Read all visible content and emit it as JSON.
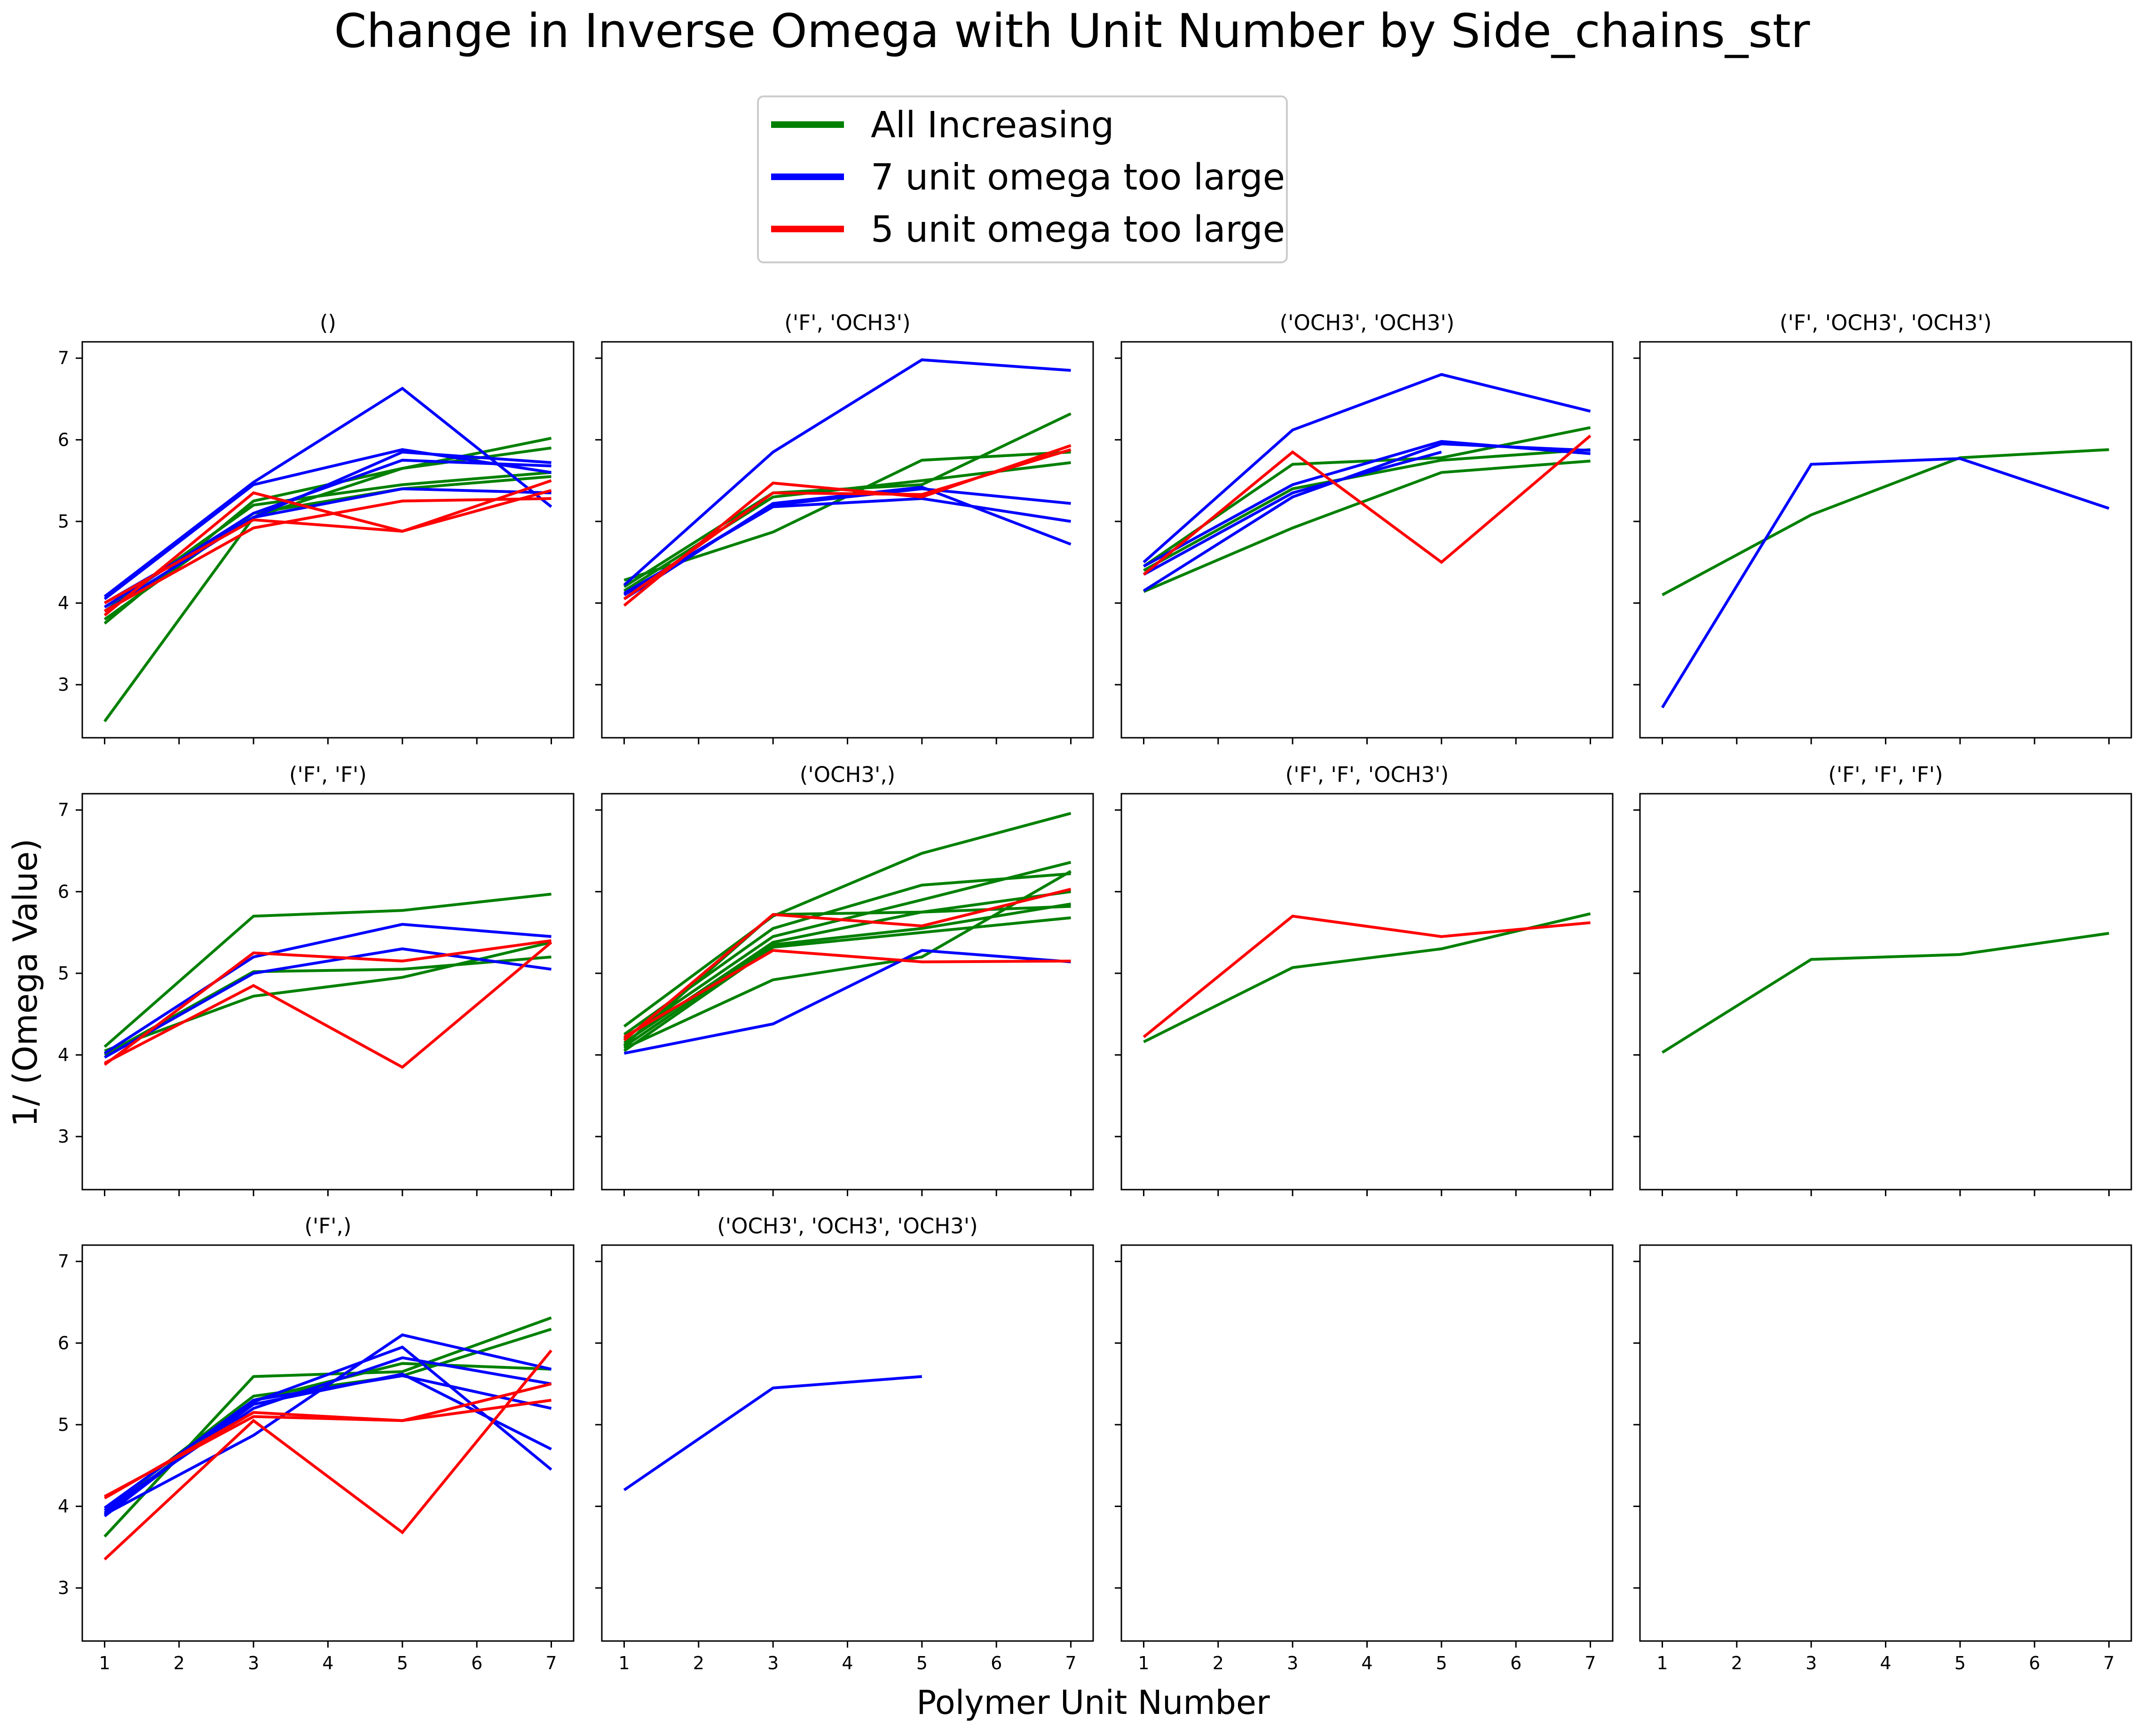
{
  "figure": {
    "title": "Change in Inverse Omega with Unit Number by Side_chains_str",
    "xlabel": "Polymer Unit Number",
    "ylabel": "1/ (Omega Value)"
  },
  "legend": {
    "location": "upper center",
    "entries": [
      {
        "label": "All Increasing",
        "color": "#008000"
      },
      {
        "label": "7 unit omega too large",
        "color": "#0000ff"
      },
      {
        "label": "5 unit omega too large",
        "color": "#ff0000"
      }
    ]
  },
  "chart_data": {
    "type": "line",
    "layout": "3x4 small multiples",
    "sharex": true,
    "sharey": true,
    "grid": false,
    "x_ticks": [
      1,
      2,
      3,
      4,
      5,
      6,
      7
    ],
    "y_ticks": [
      3,
      4,
      5,
      6,
      7
    ],
    "xlim": [
      0.7,
      7.3
    ],
    "ylim": [
      2.35,
      7.2
    ],
    "panels": [
      {
        "title": "()",
        "lines": [
          {
            "category": "All Increasing",
            "x": [
              1,
              3,
              5,
              7
            ],
            "y": [
              2.55,
              5.05,
              5.65,
              6.02
            ]
          },
          {
            "category": "All Increasing",
            "x": [
              1,
              3,
              5,
              7
            ],
            "y": [
              3.75,
              5.25,
              5.65,
              5.9
            ]
          },
          {
            "category": "All Increasing",
            "x": [
              1,
              3,
              5,
              7
            ],
            "y": [
              3.8,
              5.1,
              5.4,
              5.55
            ]
          },
          {
            "category": "All Increasing",
            "x": [
              1,
              3,
              5,
              7
            ],
            "y": [
              3.9,
              5.2,
              5.45,
              5.6
            ]
          },
          {
            "category": "7 unit omega too large",
            "x": [
              1,
              3,
              5,
              7
            ],
            "y": [
              4.08,
              5.48,
              6.63,
              5.18
            ]
          },
          {
            "category": "7 unit omega too large",
            "x": [
              1,
              3,
              5,
              7
            ],
            "y": [
              4.05,
              5.45,
              5.88,
              5.6
            ]
          },
          {
            "category": "7 unit omega too large",
            "x": [
              1,
              3,
              5,
              7
            ],
            "y": [
              4.0,
              5.05,
              5.85,
              5.72
            ]
          },
          {
            "category": "7 unit omega too large",
            "x": [
              1,
              3,
              5,
              7
            ],
            "y": [
              3.95,
              5.1,
              5.75,
              5.68
            ]
          },
          {
            "category": "7 unit omega too large",
            "x": [
              1,
              3,
              5,
              7
            ],
            "y": [
              3.9,
              5.05,
              5.4,
              5.35
            ]
          },
          {
            "category": "5 unit omega too large",
            "x": [
              1,
              3,
              5,
              7
            ],
            "y": [
              3.85,
              5.35,
              4.88,
              5.5
            ]
          },
          {
            "category": "5 unit omega too large",
            "x": [
              1,
              3,
              5,
              7
            ],
            "y": [
              3.9,
              4.92,
              5.25,
              5.28
            ]
          },
          {
            "category": "5 unit omega too large",
            "x": [
              1,
              3,
              5,
              7
            ],
            "y": [
              4.0,
              5.02,
              4.88,
              5.38
            ]
          }
        ]
      },
      {
        "title": "('F', 'OCH3')",
        "lines": [
          {
            "category": "All Increasing",
            "x": [
              1,
              3,
              5,
              7
            ],
            "y": [
              4.28,
              4.87,
              5.75,
              5.85
            ]
          },
          {
            "category": "All Increasing",
            "x": [
              1,
              3,
              5,
              7
            ],
            "y": [
              4.2,
              5.35,
              5.45,
              6.32
            ]
          },
          {
            "category": "All Increasing",
            "x": [
              1,
              3,
              5,
              7
            ],
            "y": [
              4.15,
              5.3,
              5.5,
              5.72
            ]
          },
          {
            "category": "7 unit omega too large",
            "x": [
              1,
              3,
              5,
              7
            ],
            "y": [
              4.22,
              5.85,
              6.98,
              6.85
            ]
          },
          {
            "category": "7 unit omega too large",
            "x": [
              1,
              3,
              5,
              7
            ],
            "y": [
              4.1,
              5.2,
              5.4,
              5.22
            ]
          },
          {
            "category": "7 unit omega too large",
            "x": [
              1,
              3,
              5,
              7
            ],
            "y": [
              4.12,
              5.18,
              5.28,
              5.0
            ]
          },
          {
            "category": "7 unit omega too large",
            "x": [
              1,
              3,
              5,
              7
            ],
            "y": [
              4.05,
              5.22,
              5.42,
              4.72
            ]
          },
          {
            "category": "5 unit omega too large",
            "x": [
              1,
              3,
              5,
              7
            ],
            "y": [
              3.97,
              5.47,
              5.3,
              5.93
            ]
          },
          {
            "category": "5 unit omega too large",
            "x": [
              1,
              3,
              5,
              7
            ],
            "y": [
              4.05,
              5.35,
              5.33,
              5.88
            ]
          }
        ]
      },
      {
        "title": "('OCH3', 'OCH3')",
        "lines": [
          {
            "category": "All Increasing",
            "x": [
              1,
              3,
              5,
              7
            ],
            "y": [
              4.14,
              4.92,
              5.6,
              5.74
            ]
          },
          {
            "category": "All Increasing",
            "x": [
              1,
              3,
              5,
              7
            ],
            "y": [
              4.45,
              5.7,
              5.78,
              6.15
            ]
          },
          {
            "category": "All Increasing",
            "x": [
              1,
              3,
              5,
              7
            ],
            "y": [
              4.4,
              5.4,
              5.75,
              5.88
            ]
          },
          {
            "category": "7 unit omega too large",
            "x": [
              1,
              3,
              5,
              7
            ],
            "y": [
              4.5,
              6.12,
              6.8,
              6.35
            ]
          },
          {
            "category": "7 unit omega too large",
            "x": [
              1,
              3,
              5,
              7
            ],
            "y": [
              4.45,
              5.45,
              5.98,
              5.83
            ]
          },
          {
            "category": "7 unit omega too large",
            "x": [
              1,
              3,
              5,
              7
            ],
            "y": [
              4.15,
              5.3,
              5.95,
              5.87
            ]
          },
          {
            "category": "7 unit omega too large",
            "x": [
              1,
              3,
              5
            ],
            "y": [
              4.35,
              5.35,
              5.85
            ]
          },
          {
            "category": "5 unit omega too large",
            "x": [
              1,
              3,
              5,
              7
            ],
            "y": [
              4.35,
              5.85,
              4.5,
              6.05
            ]
          }
        ]
      },
      {
        "title": "('F', 'OCH3', 'OCH3')",
        "lines": [
          {
            "category": "All Increasing",
            "x": [
              1,
              3,
              5,
              7
            ],
            "y": [
              4.1,
              5.08,
              5.78,
              5.88
            ]
          },
          {
            "category": "7 unit omega too large",
            "x": [
              1,
              3,
              5,
              7
            ],
            "y": [
              2.72,
              5.7,
              5.77,
              5.16
            ]
          }
        ]
      },
      {
        "title": "('F', 'F')",
        "lines": [
          {
            "category": "All Increasing",
            "x": [
              1,
              3,
              5,
              7
            ],
            "y": [
              4.1,
              5.7,
              5.77,
              5.97
            ]
          },
          {
            "category": "All Increasing",
            "x": [
              1,
              3,
              5,
              7
            ],
            "y": [
              4.05,
              4.72,
              4.95,
              5.38
            ]
          },
          {
            "category": "All Increasing",
            "x": [
              1,
              3,
              5,
              7
            ],
            "y": [
              4.0,
              5.02,
              5.05,
              5.2
            ]
          },
          {
            "category": "7 unit omega too large",
            "x": [
              1,
              3,
              5,
              7
            ],
            "y": [
              4.02,
              5.2,
              5.6,
              5.45
            ]
          },
          {
            "category": "7 unit omega too large",
            "x": [
              1,
              3,
              5,
              7
            ],
            "y": [
              3.97,
              5.0,
              5.3,
              5.05
            ]
          },
          {
            "category": "5 unit omega too large",
            "x": [
              1,
              3,
              5,
              7
            ],
            "y": [
              3.88,
              5.25,
              5.15,
              5.4
            ]
          },
          {
            "category": "5 unit omega too large",
            "x": [
              1,
              3,
              5,
              7
            ],
            "y": [
              3.9,
              4.85,
              3.85,
              5.38
            ]
          }
        ]
      },
      {
        "title": "('OCH3',)",
        "lines": [
          {
            "category": "All Increasing",
            "x": [
              1,
              3,
              5,
              7
            ],
            "y": [
              4.35,
              5.7,
              6.47,
              6.96
            ]
          },
          {
            "category": "All Increasing",
            "x": [
              1,
              3,
              5,
              7
            ],
            "y": [
              4.25,
              5.55,
              6.08,
              6.22
            ]
          },
          {
            "category": "All Increasing",
            "x": [
              1,
              3,
              5,
              7
            ],
            "y": [
              4.2,
              5.45,
              5.9,
              6.36
            ]
          },
          {
            "category": "All Increasing",
            "x": [
              1,
              3,
              5,
              7
            ],
            "y": [
              4.15,
              5.38,
              5.75,
              6.0
            ]
          },
          {
            "category": "All Increasing",
            "x": [
              1,
              3,
              5,
              7
            ],
            "y": [
              4.1,
              5.35,
              5.55,
              5.85
            ]
          },
          {
            "category": "All Increasing",
            "x": [
              1,
              3,
              5,
              7
            ],
            "y": [
              4.05,
              5.32,
              5.5,
              5.68
            ]
          },
          {
            "category": "All Increasing",
            "x": [
              1,
              3,
              5,
              7
            ],
            "y": [
              4.08,
              4.92,
              5.2,
              6.25
            ]
          },
          {
            "category": "All Increasing",
            "x": [
              1,
              3,
              5,
              7
            ],
            "y": [
              4.12,
              5.72,
              5.75,
              5.82
            ]
          },
          {
            "category": "7 unit omega too large",
            "x": [
              1,
              3,
              5,
              7
            ],
            "y": [
              4.02,
              4.38,
              5.28,
              5.14
            ]
          },
          {
            "category": "5 unit omega too large",
            "x": [
              1,
              3,
              5,
              7
            ],
            "y": [
              4.18,
              5.72,
              5.58,
              6.03
            ]
          },
          {
            "category": "5 unit omega too large",
            "x": [
              1,
              3,
              5,
              7
            ],
            "y": [
              4.22,
              5.28,
              5.14,
              5.15
            ]
          }
        ]
      },
      {
        "title": "('F', 'F', 'OCH3')",
        "lines": [
          {
            "category": "All Increasing",
            "x": [
              1,
              3,
              5,
              7
            ],
            "y": [
              4.16,
              5.07,
              5.3,
              5.73
            ]
          },
          {
            "category": "5 unit omega too large",
            "x": [
              1,
              3,
              5,
              7
            ],
            "y": [
              4.22,
              5.7,
              5.45,
              5.62
            ]
          }
        ]
      },
      {
        "title": "('F', 'F', 'F')",
        "lines": [
          {
            "category": "All Increasing",
            "x": [
              1,
              3,
              5,
              7
            ],
            "y": [
              4.03,
              5.17,
              5.23,
              5.49
            ]
          }
        ]
      },
      {
        "title": "('F',)",
        "lines": [
          {
            "category": "All Increasing",
            "x": [
              1,
              3,
              5,
              7
            ],
            "y": [
              3.63,
              5.59,
              5.65,
              6.31
            ]
          },
          {
            "category": "All Increasing",
            "x": [
              1,
              3,
              5,
              7
            ],
            "y": [
              3.95,
              5.35,
              5.6,
              6.17
            ]
          },
          {
            "category": "All Increasing",
            "x": [
              1,
              3,
              5,
              7
            ],
            "y": [
              3.9,
              5.3,
              5.75,
              5.68
            ]
          },
          {
            "category": "7 unit omega too large",
            "x": [
              1,
              3,
              5,
              7
            ],
            "y": [
              3.9,
              4.87,
              6.1,
              5.68
            ]
          },
          {
            "category": "7 unit omega too large",
            "x": [
              1,
              3,
              5,
              7
            ],
            "y": [
              3.88,
              5.28,
              5.95,
              4.45
            ]
          },
          {
            "category": "7 unit omega too large",
            "x": [
              1,
              3,
              5,
              7
            ],
            "y": [
              3.92,
              5.25,
              5.62,
              4.7
            ]
          },
          {
            "category": "7 unit omega too large",
            "x": [
              1,
              3,
              5,
              7
            ],
            "y": [
              3.95,
              5.2,
              5.82,
              5.5
            ]
          },
          {
            "category": "7 unit omega too large",
            "x": [
              1,
              3,
              5,
              7
            ],
            "y": [
              3.98,
              5.3,
              5.6,
              5.2
            ]
          },
          {
            "category": "5 unit omega too large",
            "x": [
              1,
              3,
              5,
              7
            ],
            "y": [
              3.35,
              5.05,
              3.68,
              5.91
            ]
          },
          {
            "category": "5 unit omega too large",
            "x": [
              1,
              3,
              5,
              7
            ],
            "y": [
              4.12,
              5.1,
              5.05,
              5.5
            ]
          },
          {
            "category": "5 unit omega too large",
            "x": [
              1,
              3,
              5,
              7
            ],
            "y": [
              4.1,
              5.15,
              5.05,
              5.3
            ]
          }
        ]
      },
      {
        "title": "('OCH3', 'OCH3', 'OCH3')",
        "lines": [
          {
            "category": "7 unit omega too large",
            "x": [
              1,
              3,
              5
            ],
            "y": [
              4.2,
              5.45,
              5.59
            ]
          }
        ]
      },
      {
        "title": "",
        "lines": []
      },
      {
        "title": "",
        "lines": []
      }
    ]
  }
}
